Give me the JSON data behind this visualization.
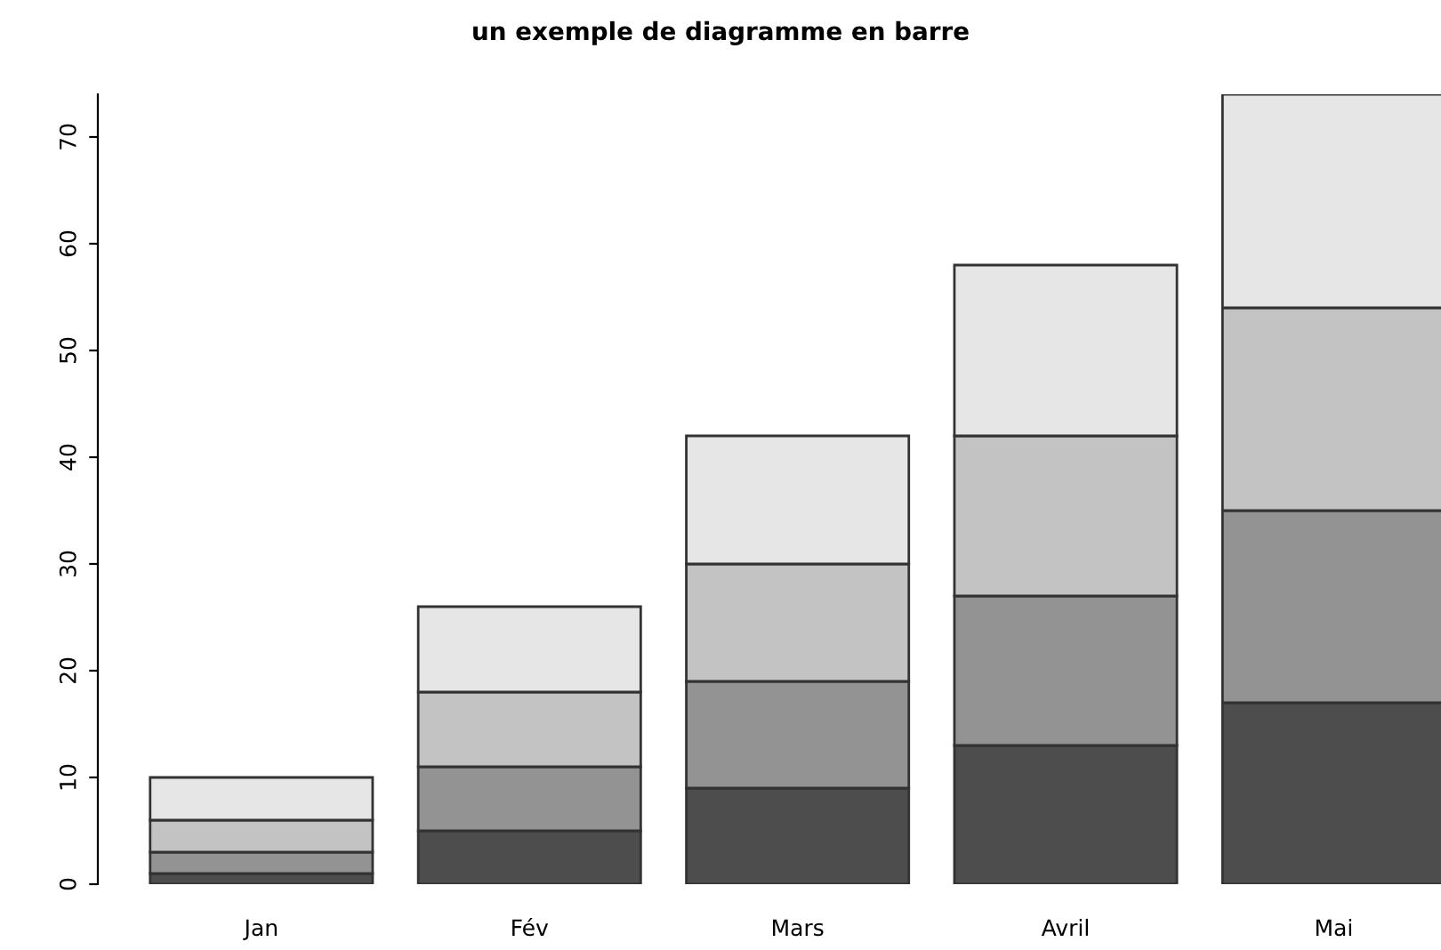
{
  "chart_data": {
    "type": "bar",
    "title": "un exemple de diagramme en barre",
    "stacked": true,
    "categories": [
      "Jan",
      "Fév",
      "Mars",
      "Avril",
      "Mai"
    ],
    "series": [
      {
        "color": "#4d4d4d",
        "values": [
          1,
          5,
          9,
          13,
          17
        ]
      },
      {
        "color": "#939393",
        "values": [
          2,
          6,
          10,
          14,
          18
        ]
      },
      {
        "color": "#c3c3c3",
        "values": [
          3,
          7,
          11,
          15,
          19
        ]
      },
      {
        "color": "#e6e6e6",
        "values": [
          4,
          8,
          12,
          16,
          20
        ]
      }
    ],
    "ylim": [
      0,
      74
    ],
    "yticks": [
      0,
      10,
      20,
      30,
      40,
      50,
      60,
      70
    ],
    "grid": false,
    "legend": false
  }
}
